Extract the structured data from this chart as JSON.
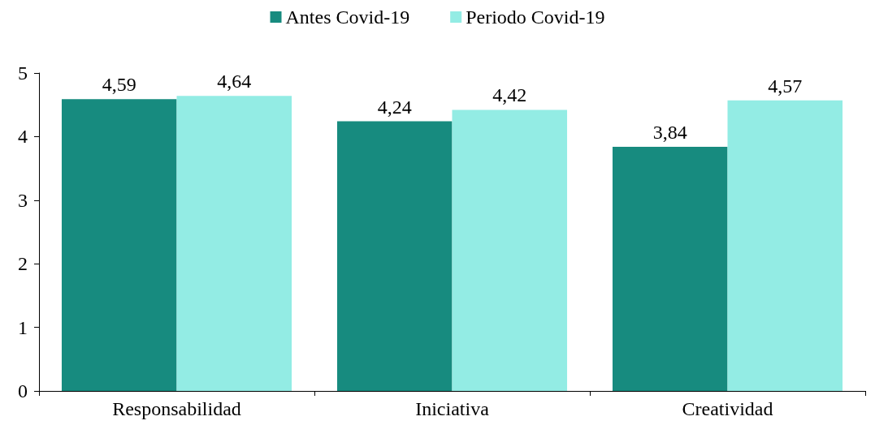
{
  "chart_data": {
    "type": "bar",
    "categories": [
      "Responsabilidad",
      "Iniciativa",
      "Creatividad"
    ],
    "series": [
      {
        "name": "Antes Covid-19",
        "color": "#178b7f",
        "values": [
          4.59,
          4.24,
          3.84
        ],
        "value_labels": [
          "4,59",
          "4,24",
          "3,84"
        ]
      },
      {
        "name": "Periodo Covid-19",
        "color": "#93ece4",
        "values": [
          4.64,
          4.42,
          4.57
        ],
        "value_labels": [
          "4,64",
          "4,42",
          "4,57"
        ]
      }
    ],
    "ylim": [
      0,
      5
    ],
    "yticks": [
      0,
      1,
      2,
      3,
      4,
      5
    ],
    "grid": false,
    "legend": "top"
  }
}
